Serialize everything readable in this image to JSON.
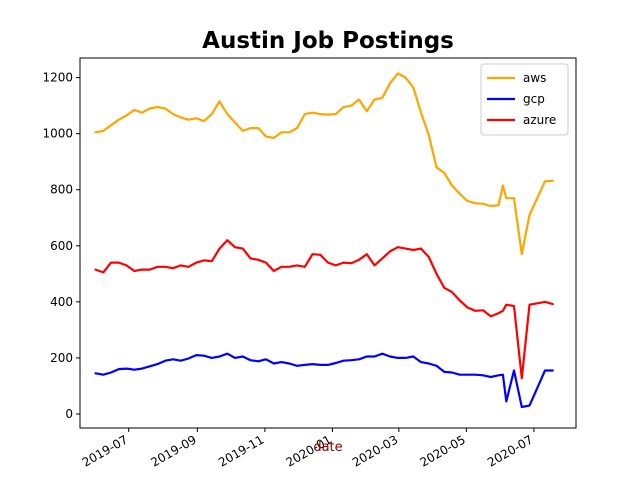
{
  "chart_data": {
    "type": "line",
    "title": "Austin Job Postings",
    "xlabel": "date",
    "ylabel": "",
    "x_ticks": [
      "2019-07",
      "2019-09",
      "2019-11",
      "2020-01",
      "2020-03",
      "2020-05",
      "2020-07"
    ],
    "x_tick_dates": [
      "2019-07-01",
      "2019-09-01",
      "2019-11-01",
      "2020-01-01",
      "2020-03-01",
      "2020-05-01",
      "2020-07-01"
    ],
    "xlim": [
      "2019-05-18",
      "2020-08-08"
    ],
    "ylim": [
      -50,
      1270
    ],
    "y_ticks": [
      0,
      200,
      400,
      600,
      800,
      1000,
      1200
    ],
    "legend_position": "top-right",
    "grid": false,
    "x": [
      "2019-06-01",
      "2019-06-08",
      "2019-06-15",
      "2019-06-22",
      "2019-06-29",
      "2019-07-06",
      "2019-07-13",
      "2019-07-20",
      "2019-07-27",
      "2019-08-03",
      "2019-08-10",
      "2019-08-17",
      "2019-08-24",
      "2019-08-31",
      "2019-09-07",
      "2019-09-14",
      "2019-09-21",
      "2019-09-28",
      "2019-10-05",
      "2019-10-12",
      "2019-10-19",
      "2019-10-26",
      "2019-11-02",
      "2019-11-09",
      "2019-11-16",
      "2019-11-23",
      "2019-11-30",
      "2019-12-07",
      "2019-12-14",
      "2019-12-21",
      "2019-12-28",
      "2020-01-04",
      "2020-01-11",
      "2020-01-18",
      "2020-01-25",
      "2020-02-01",
      "2020-02-08",
      "2020-02-15",
      "2020-02-22",
      "2020-02-29",
      "2020-03-07",
      "2020-03-14",
      "2020-03-21",
      "2020-03-28",
      "2020-04-04",
      "2020-04-11",
      "2020-04-18",
      "2020-04-25",
      "2020-05-02",
      "2020-05-09",
      "2020-05-16",
      "2020-05-23",
      "2020-05-30",
      "2020-06-03",
      "2020-06-06",
      "2020-06-13",
      "2020-06-20",
      "2020-06-27",
      "2020-07-11",
      "2020-07-18"
    ],
    "series": [
      {
        "name": "aws",
        "color": "#ffa500",
        "values": [
          1005,
          1010,
          1030,
          1050,
          1065,
          1085,
          1075,
          1090,
          1095,
          1090,
          1070,
          1058,
          1050,
          1055,
          1045,
          1070,
          1115,
          1070,
          1040,
          1010,
          1020,
          1020,
          990,
          985,
          1005,
          1005,
          1020,
          1070,
          1075,
          1070,
          1068,
          1070,
          1095,
          1100,
          1122,
          1080,
          1122,
          1128,
          1180,
          1215,
          1200,
          1165,
          1075,
          995,
          880,
          860,
          815,
          785,
          760,
          752,
          750,
          742,
          745,
          815,
          770,
          770,
          570,
          710,
          830,
          832
        ]
      },
      {
        "name": "gcp",
        "color": "#0000ff",
        "values": [
          145,
          140,
          148,
          160,
          162,
          158,
          162,
          170,
          178,
          190,
          195,
          190,
          198,
          210,
          208,
          200,
          205,
          215,
          200,
          205,
          192,
          188,
          195,
          180,
          185,
          180,
          172,
          175,
          178,
          175,
          175,
          182,
          190,
          192,
          195,
          205,
          205,
          215,
          205,
          200,
          200,
          205,
          185,
          180,
          172,
          150,
          148,
          140,
          140,
          140,
          138,
          132,
          138,
          140,
          45,
          155,
          25,
          30,
          155,
          155
        ]
      },
      {
        "name": "azure",
        "color": "#ff0000",
        "values": [
          515,
          505,
          540,
          540,
          530,
          510,
          515,
          515,
          525,
          525,
          520,
          530,
          525,
          540,
          548,
          545,
          590,
          620,
          595,
          590,
          555,
          550,
          540,
          510,
          525,
          525,
          530,
          525,
          570,
          568,
          540,
          530,
          540,
          538,
          550,
          570,
          530,
          555,
          580,
          595,
          590,
          585,
          590,
          560,
          500,
          450,
          435,
          405,
          380,
          368,
          370,
          348,
          360,
          368,
          390,
          385,
          128,
          390,
          400,
          392
        ]
      }
    ]
  }
}
